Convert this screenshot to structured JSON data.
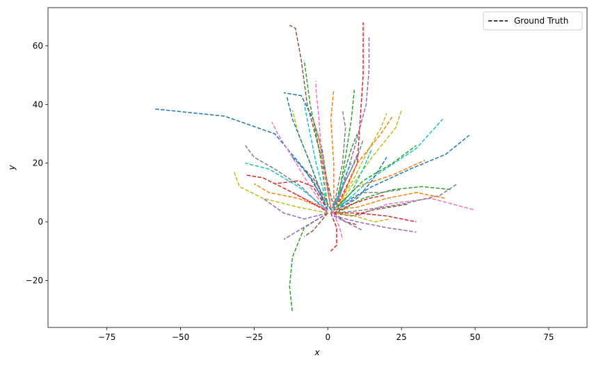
{
  "chart_data": {
    "type": "line",
    "title": "",
    "xlabel": "x",
    "ylabel": "y",
    "xlim": [
      -95,
      88
    ],
    "ylim": [
      -36,
      73
    ],
    "xticks": [
      -75,
      -50,
      -25,
      0,
      25,
      50,
      75
    ],
    "yticks": [
      -20,
      0,
      20,
      40,
      60
    ],
    "grid": false,
    "legend": {
      "position": "top-right",
      "entries": [
        {
          "label": "Ground Truth",
          "style": "dashed",
          "color": "#000000"
        }
      ]
    },
    "palette": [
      "#1f77b4",
      "#ff7f0e",
      "#2ca02c",
      "#d62728",
      "#9467bd",
      "#8c564b",
      "#e377c2",
      "#7f7f7f",
      "#bcbd22",
      "#17becf"
    ],
    "trajectories": [
      [
        [
          -1,
          7
        ],
        [
          -8,
          18
        ],
        [
          -18,
          30
        ],
        [
          -35,
          36
        ],
        [
          -59,
          38.5
        ]
      ],
      [
        [
          0,
          4
        ],
        [
          -10,
          8
        ],
        [
          -20,
          10
        ],
        [
          -25,
          13
        ]
      ],
      [
        [
          0,
          5
        ],
        [
          -3,
          25
        ],
        [
          -6,
          40
        ],
        [
          -8,
          55
        ]
      ],
      [
        [
          0,
          4
        ],
        [
          -5,
          12
        ],
        [
          -10,
          14
        ],
        [
          -18,
          13
        ]
      ],
      [
        [
          0,
          3
        ],
        [
          -8,
          1
        ],
        [
          -15,
          3
        ],
        [
          -22,
          8
        ]
      ],
      [
        [
          2,
          3
        ],
        [
          8,
          2
        ],
        [
          15,
          4
        ],
        [
          27,
          6
        ]
      ],
      [
        [
          1,
          3
        ],
        [
          10,
          2
        ],
        [
          20,
          6
        ],
        [
          35,
          8
        ],
        [
          50,
          4
        ]
      ],
      [
        [
          3,
          3
        ],
        [
          12,
          4
        ],
        [
          25,
          6
        ],
        [
          38,
          9
        ],
        [
          44,
          13
        ]
      ],
      [
        [
          3,
          4
        ],
        [
          8,
          12
        ],
        [
          15,
          22
        ],
        [
          23,
          32
        ],
        [
          25,
          38
        ]
      ],
      [
        [
          3,
          4
        ],
        [
          15,
          15
        ],
        [
          30,
          25
        ],
        [
          39,
          35
        ]
      ],
      [
        [
          3,
          5
        ],
        [
          15,
          12
        ],
        [
          28,
          18
        ],
        [
          40,
          23
        ],
        [
          48,
          29.5
        ]
      ],
      [
        [
          2,
          4
        ],
        [
          10,
          12
        ],
        [
          22,
          16
        ],
        [
          33,
          21
        ]
      ],
      [
        [
          0,
          3
        ],
        [
          -8,
          -2
        ],
        [
          -12,
          -12
        ],
        [
          -13,
          -22
        ],
        [
          -12,
          -31
        ]
      ],
      [
        [
          1,
          3
        ],
        [
          3,
          -2
        ],
        [
          3,
          -8
        ],
        [
          1,
          -10
        ]
      ],
      [
        [
          0,
          3
        ],
        [
          -5,
          0
        ],
        [
          -10,
          -3
        ],
        [
          -15,
          -6
        ]
      ],
      [
        [
          0,
          3
        ],
        [
          -5,
          -3
        ],
        [
          -8,
          -5
        ]
      ],
      [
        [
          0,
          3
        ],
        [
          -6,
          12
        ],
        [
          -12,
          22
        ],
        [
          -17,
          30
        ],
        [
          -19,
          34
        ]
      ],
      [
        [
          0,
          3
        ],
        [
          -9,
          12
        ],
        [
          -18,
          18
        ],
        [
          -25,
          22
        ],
        [
          -28,
          26
        ]
      ],
      [
        [
          0,
          4
        ],
        [
          -6,
          20
        ],
        [
          -10,
          30
        ],
        [
          -12,
          38
        ]
      ],
      [
        [
          0,
          5
        ],
        [
          -4,
          20
        ],
        [
          -6,
          30
        ],
        [
          -8,
          40
        ]
      ],
      [
        [
          1,
          5
        ],
        [
          -2,
          25
        ],
        [
          -5,
          35
        ],
        [
          -9,
          43
        ],
        [
          -15,
          44
        ]
      ],
      [
        [
          2,
          4
        ],
        [
          2,
          20
        ],
        [
          1,
          35
        ],
        [
          2,
          45
        ]
      ],
      [
        [
          3,
          5
        ],
        [
          6,
          22
        ],
        [
          8,
          35
        ],
        [
          9,
          45
        ]
      ],
      [
        [
          3,
          5
        ],
        [
          10,
          20
        ],
        [
          11,
          35
        ],
        [
          12,
          50
        ],
        [
          12,
          68
        ]
      ],
      [
        [
          3,
          5
        ],
        [
          9,
          25
        ],
        [
          13,
          40
        ],
        [
          14,
          52
        ],
        [
          14,
          63
        ]
      ],
      [
        [
          2,
          5
        ],
        [
          -3,
          25
        ],
        [
          -7,
          40
        ],
        [
          -9,
          55
        ],
        [
          -11,
          66
        ],
        [
          -13,
          67
        ]
      ],
      [
        [
          1,
          5
        ],
        [
          -2,
          20
        ],
        [
          -3,
          35
        ],
        [
          -4,
          45
        ],
        [
          -4,
          48
        ]
      ],
      [
        [
          2,
          5
        ],
        [
          5,
          20
        ],
        [
          6,
          32
        ],
        [
          5,
          38
        ]
      ],
      [
        [
          3,
          5
        ],
        [
          9,
          15
        ],
        [
          14,
          25
        ],
        [
          18,
          32
        ],
        [
          20,
          37
        ]
      ],
      [
        [
          3,
          4
        ],
        [
          8,
          10
        ],
        [
          12,
          18
        ],
        [
          15,
          25
        ]
      ],
      [
        [
          3,
          4
        ],
        [
          10,
          8
        ],
        [
          15,
          14
        ],
        [
          20,
          22
        ]
      ],
      [
        [
          2,
          4
        ],
        [
          10,
          5
        ],
        [
          20,
          8
        ],
        [
          30,
          10
        ],
        [
          40,
          8
        ]
      ],
      [
        [
          3,
          3
        ],
        [
          12,
          8
        ],
        [
          22,
          11
        ],
        [
          32,
          12
        ],
        [
          42,
          11
        ]
      ],
      [
        [
          2,
          3
        ],
        [
          10,
          3
        ],
        [
          20,
          2
        ],
        [
          30,
          0
        ]
      ],
      [
        [
          2,
          2
        ],
        [
          10,
          0
        ],
        [
          20,
          -2
        ],
        [
          30,
          -3.5
        ]
      ],
      [
        [
          2,
          3
        ],
        [
          6,
          0
        ],
        [
          10,
          -1
        ]
      ],
      [
        [
          2,
          3
        ],
        [
          4,
          -2
        ],
        [
          5,
          -6
        ]
      ],
      [
        [
          1,
          3
        ],
        [
          6,
          6
        ],
        [
          12,
          10
        ],
        [
          18,
          10
        ],
        [
          25,
          11
        ]
      ],
      [
        [
          0,
          3
        ],
        [
          -10,
          5
        ],
        [
          -22,
          8
        ],
        [
          -30,
          12
        ],
        [
          -32,
          17.5
        ]
      ],
      [
        [
          0,
          4
        ],
        [
          -10,
          12
        ],
        [
          -20,
          18
        ],
        [
          -28,
          20
        ]
      ],
      [
        [
          0,
          4
        ],
        [
          -5,
          14
        ],
        [
          -10,
          20
        ],
        [
          -12,
          22
        ]
      ],
      [
        [
          1,
          4
        ],
        [
          -1,
          18
        ],
        [
          -3,
          28
        ],
        [
          -5,
          35
        ]
      ],
      [
        [
          2,
          4
        ],
        [
          5,
          15
        ],
        [
          8,
          25
        ],
        [
          10,
          30
        ]
      ],
      [
        [
          2,
          3
        ],
        [
          8,
          6
        ],
        [
          14,
          8
        ],
        [
          19,
          9
        ]
      ],
      [
        [
          1,
          3
        ],
        [
          5,
          12
        ],
        [
          8,
          18
        ],
        [
          10,
          23
        ]
      ],
      [
        [
          1,
          4
        ],
        [
          -2,
          10
        ],
        [
          -5,
          15
        ],
        [
          -8,
          18
        ]
      ],
      [
        [
          0,
          4
        ],
        [
          -4,
          6
        ],
        [
          -8,
          8
        ],
        [
          -12,
          10
        ]
      ],
      [
        [
          2,
          4
        ],
        [
          6,
          14
        ],
        [
          10,
          22
        ],
        [
          12,
          28
        ]
      ],
      [
        [
          3,
          3
        ],
        [
          9,
          2
        ],
        [
          16,
          0
        ],
        [
          21,
          1
        ]
      ],
      [
        [
          1,
          4
        ],
        [
          4,
          10
        ],
        [
          6,
          16
        ],
        [
          8,
          20
        ]
      ],
      [
        [
          -1,
          6
        ],
        [
          -6,
          20
        ],
        [
          -12,
          35
        ],
        [
          -14,
          43
        ]
      ],
      [
        [
          4,
          6
        ],
        [
          10,
          20
        ],
        [
          18,
          30
        ],
        [
          22,
          36
        ]
      ],
      [
        [
          3,
          5
        ],
        [
          12,
          14
        ],
        [
          22,
          20
        ],
        [
          30,
          26
        ]
      ],
      [
        [
          -1,
          4
        ],
        [
          -12,
          10
        ],
        [
          -22,
          15
        ],
        [
          -28,
          16
        ]
      ],
      [
        [
          2,
          2
        ],
        [
          8,
          -1
        ],
        [
          12,
          -3
        ]
      ]
    ]
  }
}
